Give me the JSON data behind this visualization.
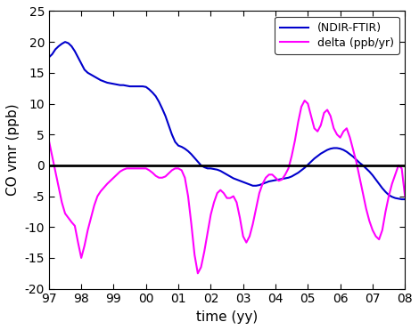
{
  "title": "",
  "xlabel": "time (yy)",
  "ylabel": "CO vmr (ppb)",
  "ylim": [
    -20,
    25
  ],
  "xtick_positions": [
    97,
    98,
    99,
    100,
    101,
    102,
    103,
    104,
    105,
    106,
    107,
    108
  ],
  "xtick_labels": [
    "97",
    "98",
    "99",
    "00",
    "01",
    "02",
    "03",
    "04",
    "05",
    "06",
    "07",
    "08"
  ],
  "yticks": [
    -20,
    -15,
    -10,
    -5,
    0,
    5,
    10,
    15,
    20,
    25
  ],
  "line1_color": "#0000cc",
  "line2_color": "#ff00ff",
  "legend_labels": [
    "(NDIR-FTIR)",
    "delta (ppb/yr)"
  ],
  "blue_x": [
    97.0,
    97.1,
    97.2,
    97.3,
    97.4,
    97.5,
    97.6,
    97.7,
    97.8,
    97.9,
    98.0,
    98.1,
    98.2,
    98.3,
    98.4,
    98.5,
    98.6,
    98.7,
    98.8,
    98.9,
    99.0,
    99.1,
    99.2,
    99.3,
    99.4,
    99.5,
    99.6,
    99.7,
    99.8,
    99.9,
    100.0,
    100.1,
    100.2,
    100.3,
    100.4,
    100.5,
    100.6,
    100.7,
    100.8,
    100.9,
    101.0,
    101.1,
    101.2,
    101.3,
    101.4,
    101.5,
    101.6,
    101.7,
    101.8,
    101.9,
    102.0,
    102.1,
    102.2,
    102.3,
    102.4,
    102.5,
    102.6,
    102.7,
    102.8,
    102.9,
    103.0,
    103.1,
    103.2,
    103.3,
    103.4,
    103.5,
    103.6,
    103.7,
    103.8,
    103.9,
    104.0,
    104.1,
    104.2,
    104.3,
    104.4,
    104.5,
    104.6,
    104.7,
    104.8,
    104.9,
    105.0,
    105.1,
    105.2,
    105.3,
    105.4,
    105.5,
    105.6,
    105.7,
    105.8,
    105.9,
    106.0,
    106.1,
    106.2,
    106.3,
    106.4,
    106.5,
    106.6,
    106.7,
    106.8,
    106.9,
    107.0,
    107.1,
    107.2,
    107.3,
    107.4,
    107.5,
    107.6,
    107.7,
    107.8,
    107.9,
    108.0
  ],
  "blue_y": [
    17.5,
    18.0,
    18.8,
    19.3,
    19.7,
    20.0,
    19.8,
    19.3,
    18.5,
    17.5,
    16.5,
    15.5,
    15.0,
    14.7,
    14.4,
    14.1,
    13.8,
    13.6,
    13.4,
    13.3,
    13.2,
    13.1,
    13.0,
    13.0,
    12.9,
    12.8,
    12.8,
    12.8,
    12.8,
    12.8,
    12.7,
    12.3,
    11.8,
    11.2,
    10.3,
    9.2,
    8.0,
    6.5,
    5.0,
    3.8,
    3.2,
    3.0,
    2.7,
    2.3,
    1.8,
    1.2,
    0.6,
    0.0,
    -0.3,
    -0.5,
    -0.5,
    -0.6,
    -0.7,
    -0.9,
    -1.2,
    -1.5,
    -1.8,
    -2.1,
    -2.3,
    -2.5,
    -2.7,
    -2.9,
    -3.1,
    -3.3,
    -3.3,
    -3.2,
    -3.0,
    -2.8,
    -2.6,
    -2.5,
    -2.4,
    -2.3,
    -2.2,
    -2.1,
    -2.0,
    -1.8,
    -1.5,
    -1.2,
    -0.8,
    -0.4,
    0.1,
    0.6,
    1.1,
    1.5,
    1.9,
    2.2,
    2.5,
    2.7,
    2.8,
    2.8,
    2.7,
    2.5,
    2.2,
    1.8,
    1.4,
    0.9,
    0.4,
    0.0,
    -0.5,
    -1.0,
    -1.6,
    -2.3,
    -3.0,
    -3.7,
    -4.3,
    -4.8,
    -5.1,
    -5.3,
    -5.4,
    -5.5,
    -5.5
  ],
  "magenta_x": [
    97.0,
    97.1,
    97.2,
    97.3,
    97.4,
    97.5,
    97.6,
    97.7,
    97.8,
    97.9,
    98.0,
    98.1,
    98.2,
    98.3,
    98.4,
    98.5,
    98.6,
    98.7,
    98.8,
    98.9,
    99.0,
    99.1,
    99.2,
    99.3,
    99.4,
    99.5,
    99.6,
    99.7,
    99.8,
    99.9,
    100.0,
    100.1,
    100.2,
    100.3,
    100.4,
    100.5,
    100.6,
    100.7,
    100.8,
    100.9,
    101.0,
    101.1,
    101.2,
    101.3,
    101.4,
    101.5,
    101.6,
    101.7,
    101.8,
    101.9,
    102.0,
    102.1,
    102.2,
    102.3,
    102.4,
    102.5,
    102.6,
    102.7,
    102.8,
    102.9,
    103.0,
    103.1,
    103.2,
    103.3,
    103.4,
    103.5,
    103.6,
    103.7,
    103.8,
    103.9,
    104.0,
    104.1,
    104.2,
    104.3,
    104.4,
    104.5,
    104.6,
    104.7,
    104.8,
    104.9,
    105.0,
    105.1,
    105.2,
    105.3,
    105.4,
    105.5,
    105.6,
    105.7,
    105.8,
    105.9,
    106.0,
    106.1,
    106.2,
    106.3,
    106.4,
    106.5,
    106.6,
    106.7,
    106.8,
    106.9,
    107.0,
    107.1,
    107.2,
    107.3,
    107.4,
    107.5,
    107.6,
    107.7,
    107.8,
    107.9,
    108.0
  ],
  "magenta_y": [
    4.0,
    1.5,
    -1.0,
    -3.5,
    -6.0,
    -7.8,
    -8.5,
    -9.2,
    -9.8,
    -12.5,
    -15.0,
    -13.0,
    -10.5,
    -8.5,
    -6.5,
    -5.0,
    -4.2,
    -3.6,
    -3.0,
    -2.5,
    -2.0,
    -1.5,
    -1.0,
    -0.7,
    -0.5,
    -0.5,
    -0.5,
    -0.5,
    -0.5,
    -0.5,
    -0.5,
    -0.8,
    -1.2,
    -1.7,
    -2.0,
    -2.0,
    -1.8,
    -1.3,
    -0.8,
    -0.5,
    -0.5,
    -0.8,
    -2.0,
    -5.0,
    -9.5,
    -14.5,
    -17.5,
    -16.5,
    -14.0,
    -11.0,
    -8.0,
    -6.0,
    -4.5,
    -4.0,
    -4.5,
    -5.3,
    -5.3,
    -5.0,
    -6.0,
    -8.5,
    -11.5,
    -12.5,
    -11.5,
    -9.5,
    -7.0,
    -4.5,
    -3.0,
    -2.0,
    -1.5,
    -1.5,
    -2.0,
    -2.5,
    -2.3,
    -1.5,
    -0.5,
    1.5,
    4.0,
    7.0,
    9.5,
    10.5,
    10.0,
    8.0,
    6.0,
    5.5,
    6.5,
    8.5,
    9.0,
    8.0,
    6.0,
    5.0,
    4.5,
    5.5,
    6.0,
    4.5,
    2.5,
    0.5,
    -2.0,
    -4.5,
    -7.0,
    -9.0,
    -10.5,
    -11.5,
    -12.0,
    -10.5,
    -7.5,
    -5.0,
    -3.0,
    -1.5,
    0.0,
    -0.5,
    -5.0
  ]
}
